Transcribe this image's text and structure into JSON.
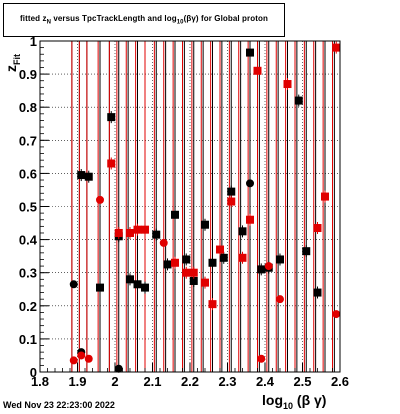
{
  "title_parts": {
    "a": "fitted  z",
    "a_sub": "N",
    "b": " versus TpcTrackLength and log",
    "b_sub": "10",
    "c": "(βγ) for Global proton"
  },
  "timestamp": "Wed Nov 23 22:23:00 2022",
  "xlabel_parts": {
    "main": "log",
    "sub": "10",
    "rest": "(β γ)"
  },
  "ylabel_parts": {
    "main": "z",
    "sub": "Fit"
  },
  "colors": {
    "black": "#000000",
    "red": "#e00000"
  },
  "chart_data": {
    "type": "scatter",
    "xlim": [
      1.8,
      2.6
    ],
    "ylim": [
      0,
      1
    ],
    "xticks": [
      "1.8",
      "1.9",
      "2",
      "2.1",
      "2.2",
      "2.3",
      "2.4",
      "2.5",
      "2.6"
    ],
    "yticks": [
      "0",
      "0.1",
      "0.2",
      "0.3",
      "0.4",
      "0.5",
      "0.6",
      "0.7",
      "0.8",
      "0.9",
      "1"
    ],
    "grid": true,
    "series": [
      {
        "color": "black",
        "points": [
          {
            "x": 1.89,
            "y": 0.265,
            "marker": "circle"
          },
          {
            "x": 1.91,
            "y": 0.595,
            "marker": "square"
          },
          {
            "x": 1.91,
            "y": 0.06,
            "marker": "circle"
          },
          {
            "x": 1.93,
            "y": 0.59,
            "marker": "square"
          },
          {
            "x": 1.96,
            "y": 0.255,
            "marker": "square"
          },
          {
            "x": 1.99,
            "y": 0.77,
            "marker": "square"
          },
          {
            "x": 2.01,
            "y": 0.41,
            "marker": "square"
          },
          {
            "x": 2.01,
            "y": 0.01,
            "marker": "circle"
          },
          {
            "x": 2.04,
            "y": 0.28,
            "marker": "square"
          },
          {
            "x": 2.06,
            "y": 0.265,
            "marker": "square"
          },
          {
            "x": 2.08,
            "y": 0.255,
            "marker": "square"
          },
          {
            "x": 2.11,
            "y": 0.415,
            "marker": "square"
          },
          {
            "x": 2.14,
            "y": 0.325,
            "marker": "square"
          },
          {
            "x": 2.16,
            "y": 0.475,
            "marker": "square"
          },
          {
            "x": 2.19,
            "y": 0.34,
            "marker": "square"
          },
          {
            "x": 2.21,
            "y": 0.275,
            "marker": "square"
          },
          {
            "x": 2.24,
            "y": 0.445,
            "marker": "square"
          },
          {
            "x": 2.26,
            "y": 0.33,
            "marker": "square"
          },
          {
            "x": 2.29,
            "y": 0.345,
            "marker": "square"
          },
          {
            "x": 2.31,
            "y": 0.545,
            "marker": "square"
          },
          {
            "x": 2.34,
            "y": 0.425,
            "marker": "square"
          },
          {
            "x": 2.36,
            "y": 0.965,
            "marker": "square"
          },
          {
            "x": 2.36,
            "y": 0.57,
            "marker": "circle"
          },
          {
            "x": 2.39,
            "y": 0.31,
            "marker": "square"
          },
          {
            "x": 2.41,
            "y": 0.315,
            "marker": "square"
          },
          {
            "x": 2.44,
            "y": 0.34,
            "marker": "square"
          },
          {
            "x": 2.49,
            "y": 0.82,
            "marker": "square"
          },
          {
            "x": 2.51,
            "y": 0.365,
            "marker": "square"
          },
          {
            "x": 2.54,
            "y": 0.24,
            "marker": "square"
          }
        ]
      },
      {
        "color": "red",
        "points": [
          {
            "x": 1.89,
            "y": 0.035,
            "marker": "circle"
          },
          {
            "x": 1.91,
            "y": 0.05,
            "marker": "circle"
          },
          {
            "x": 1.93,
            "y": 0.04,
            "marker": "circle"
          },
          {
            "x": 1.96,
            "y": 0.52,
            "marker": "circle"
          },
          {
            "x": 1.99,
            "y": 0.63,
            "marker": "square"
          },
          {
            "x": 2.01,
            "y": 0.42,
            "marker": "square"
          },
          {
            "x": 2.04,
            "y": 0.42,
            "marker": "square"
          },
          {
            "x": 2.06,
            "y": 0.43,
            "marker": "square"
          },
          {
            "x": 2.08,
            "y": 0.43,
            "marker": "square"
          },
          {
            "x": 2.13,
            "y": 0.39,
            "marker": "circle"
          },
          {
            "x": 2.16,
            "y": 0.33,
            "marker": "square"
          },
          {
            "x": 2.19,
            "y": 0.3,
            "marker": "square"
          },
          {
            "x": 2.21,
            "y": 0.3,
            "marker": "square"
          },
          {
            "x": 2.24,
            "y": 0.27,
            "marker": "square"
          },
          {
            "x": 2.26,
            "y": 0.205,
            "marker": "square"
          },
          {
            "x": 2.28,
            "y": 0.37,
            "marker": "square"
          },
          {
            "x": 2.31,
            "y": 0.515,
            "marker": "square"
          },
          {
            "x": 2.34,
            "y": 0.345,
            "marker": "square"
          },
          {
            "x": 2.36,
            "y": 0.46,
            "marker": "square"
          },
          {
            "x": 2.38,
            "y": 0.91,
            "marker": "square"
          },
          {
            "x": 2.39,
            "y": 0.04,
            "marker": "circle"
          },
          {
            "x": 2.41,
            "y": 0.32,
            "marker": "circle"
          },
          {
            "x": 2.44,
            "y": 0.22,
            "marker": "circle"
          },
          {
            "x": 2.46,
            "y": 0.87,
            "marker": "square"
          },
          {
            "x": 2.54,
            "y": 0.435,
            "marker": "square"
          },
          {
            "x": 2.56,
            "y": 0.53,
            "marker": "square"
          },
          {
            "x": 2.59,
            "y": 0.175,
            "marker": "circle"
          },
          {
            "x": 2.59,
            "y": 0.98,
            "marker": "square"
          }
        ]
      }
    ],
    "black_lines": [
      1.885,
      1.905,
      1.925,
      1.96,
      1.985,
      2.01,
      2.035,
      2.06,
      2.08,
      2.11,
      2.135,
      2.16,
      2.185,
      2.21,
      2.235,
      2.26,
      2.285,
      2.31,
      2.335,
      2.36,
      2.385,
      2.41,
      2.435,
      2.46,
      2.485,
      2.51,
      2.535,
      2.56,
      2.585
    ],
    "red_lines": [
      1.885,
      1.905,
      1.925,
      1.955,
      1.985,
      2.005,
      2.03,
      2.055,
      2.08,
      2.105,
      2.13,
      2.155,
      2.18,
      2.205,
      2.23,
      2.255,
      2.28,
      2.305,
      2.33,
      2.355,
      2.38,
      2.405,
      2.43,
      2.455,
      2.48,
      2.505,
      2.53,
      2.555,
      2.58
    ]
  }
}
